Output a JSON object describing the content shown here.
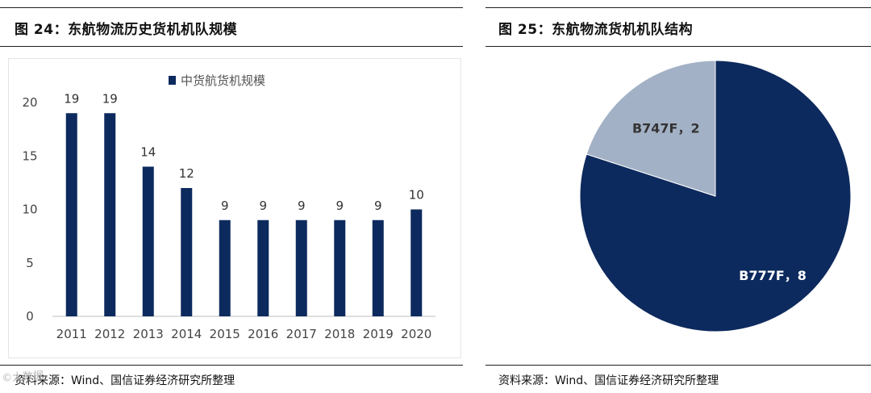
{
  "figures": [
    {
      "title": "图 24：东航物流历史货机机队规模",
      "source": "资料来源：Wind、国信证券经济研究所整理"
    },
    {
      "title": "图 25：东航物流货机机队结构",
      "source": "资料来源：Wind、国信证券经济研究所整理"
    }
  ],
  "watermark": "©大数据",
  "colors": {
    "navy": "#0d2a5e",
    "light": "#a3b1c6"
  },
  "chart_data": [
    {
      "type": "bar",
      "categories": [
        "2011",
        "2012",
        "2013",
        "2014",
        "2015",
        "2016",
        "2017",
        "2018",
        "2019",
        "2020"
      ],
      "series": [
        {
          "name": "中货航货机规模",
          "values": [
            19,
            19,
            14,
            12,
            9,
            9,
            9,
            9,
            9,
            10
          ]
        }
      ],
      "yticks": [
        "0",
        "5",
        "10",
        "15",
        "20"
      ],
      "ylim": [
        0,
        20
      ],
      "legend": "top-center"
    },
    {
      "type": "pie",
      "slices": [
        {
          "label": "B777F，8",
          "name": "B777F",
          "value": 8
        },
        {
          "label": "B747F，2",
          "name": "B747F",
          "value": 2
        }
      ]
    }
  ]
}
